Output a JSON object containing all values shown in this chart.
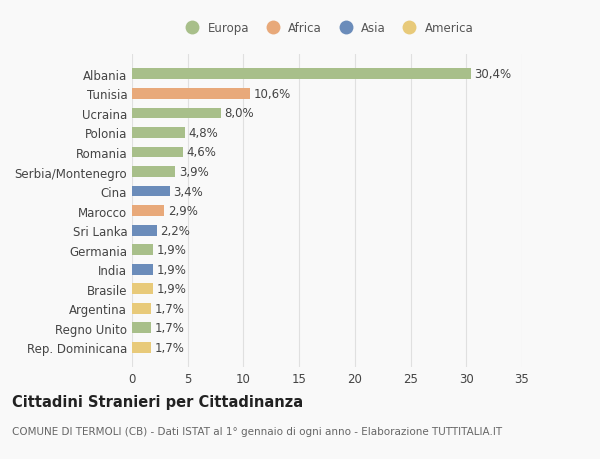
{
  "categories": [
    "Albania",
    "Tunisia",
    "Ucraina",
    "Polonia",
    "Romania",
    "Serbia/Montenegro",
    "Cina",
    "Marocco",
    "Sri Lanka",
    "Germania",
    "India",
    "Brasile",
    "Argentina",
    "Regno Unito",
    "Rep. Dominicana"
  ],
  "values": [
    30.4,
    10.6,
    8.0,
    4.8,
    4.6,
    3.9,
    3.4,
    2.9,
    2.2,
    1.9,
    1.9,
    1.9,
    1.7,
    1.7,
    1.7
  ],
  "labels": [
    "30,4%",
    "10,6%",
    "8,0%",
    "4,8%",
    "4,6%",
    "3,9%",
    "3,4%",
    "2,9%",
    "2,2%",
    "1,9%",
    "1,9%",
    "1,9%",
    "1,7%",
    "1,7%",
    "1,7%"
  ],
  "continents": [
    "Europa",
    "Africa",
    "Europa",
    "Europa",
    "Europa",
    "Europa",
    "Asia",
    "Africa",
    "Asia",
    "Europa",
    "Asia",
    "America",
    "America",
    "Europa",
    "America"
  ],
  "continent_colors": {
    "Europa": "#a8bf8a",
    "Africa": "#e8a97a",
    "Asia": "#6b8cba",
    "America": "#e8ca7a"
  },
  "legend_order": [
    "Europa",
    "Africa",
    "Asia",
    "America"
  ],
  "title": "Cittadini Stranieri per Cittadinanza",
  "subtitle": "COMUNE DI TERMOLI (CB) - Dati ISTAT al 1° gennaio di ogni anno - Elaborazione TUTTITALIA.IT",
  "xlim": [
    0,
    35
  ],
  "xticks": [
    0,
    5,
    10,
    15,
    20,
    25,
    30,
    35
  ],
  "background_color": "#f9f9f9",
  "grid_color": "#e0e0e0",
  "bar_height": 0.55,
  "label_fontsize": 8.5,
  "tick_fontsize": 8.5,
  "title_fontsize": 10.5,
  "subtitle_fontsize": 7.5
}
